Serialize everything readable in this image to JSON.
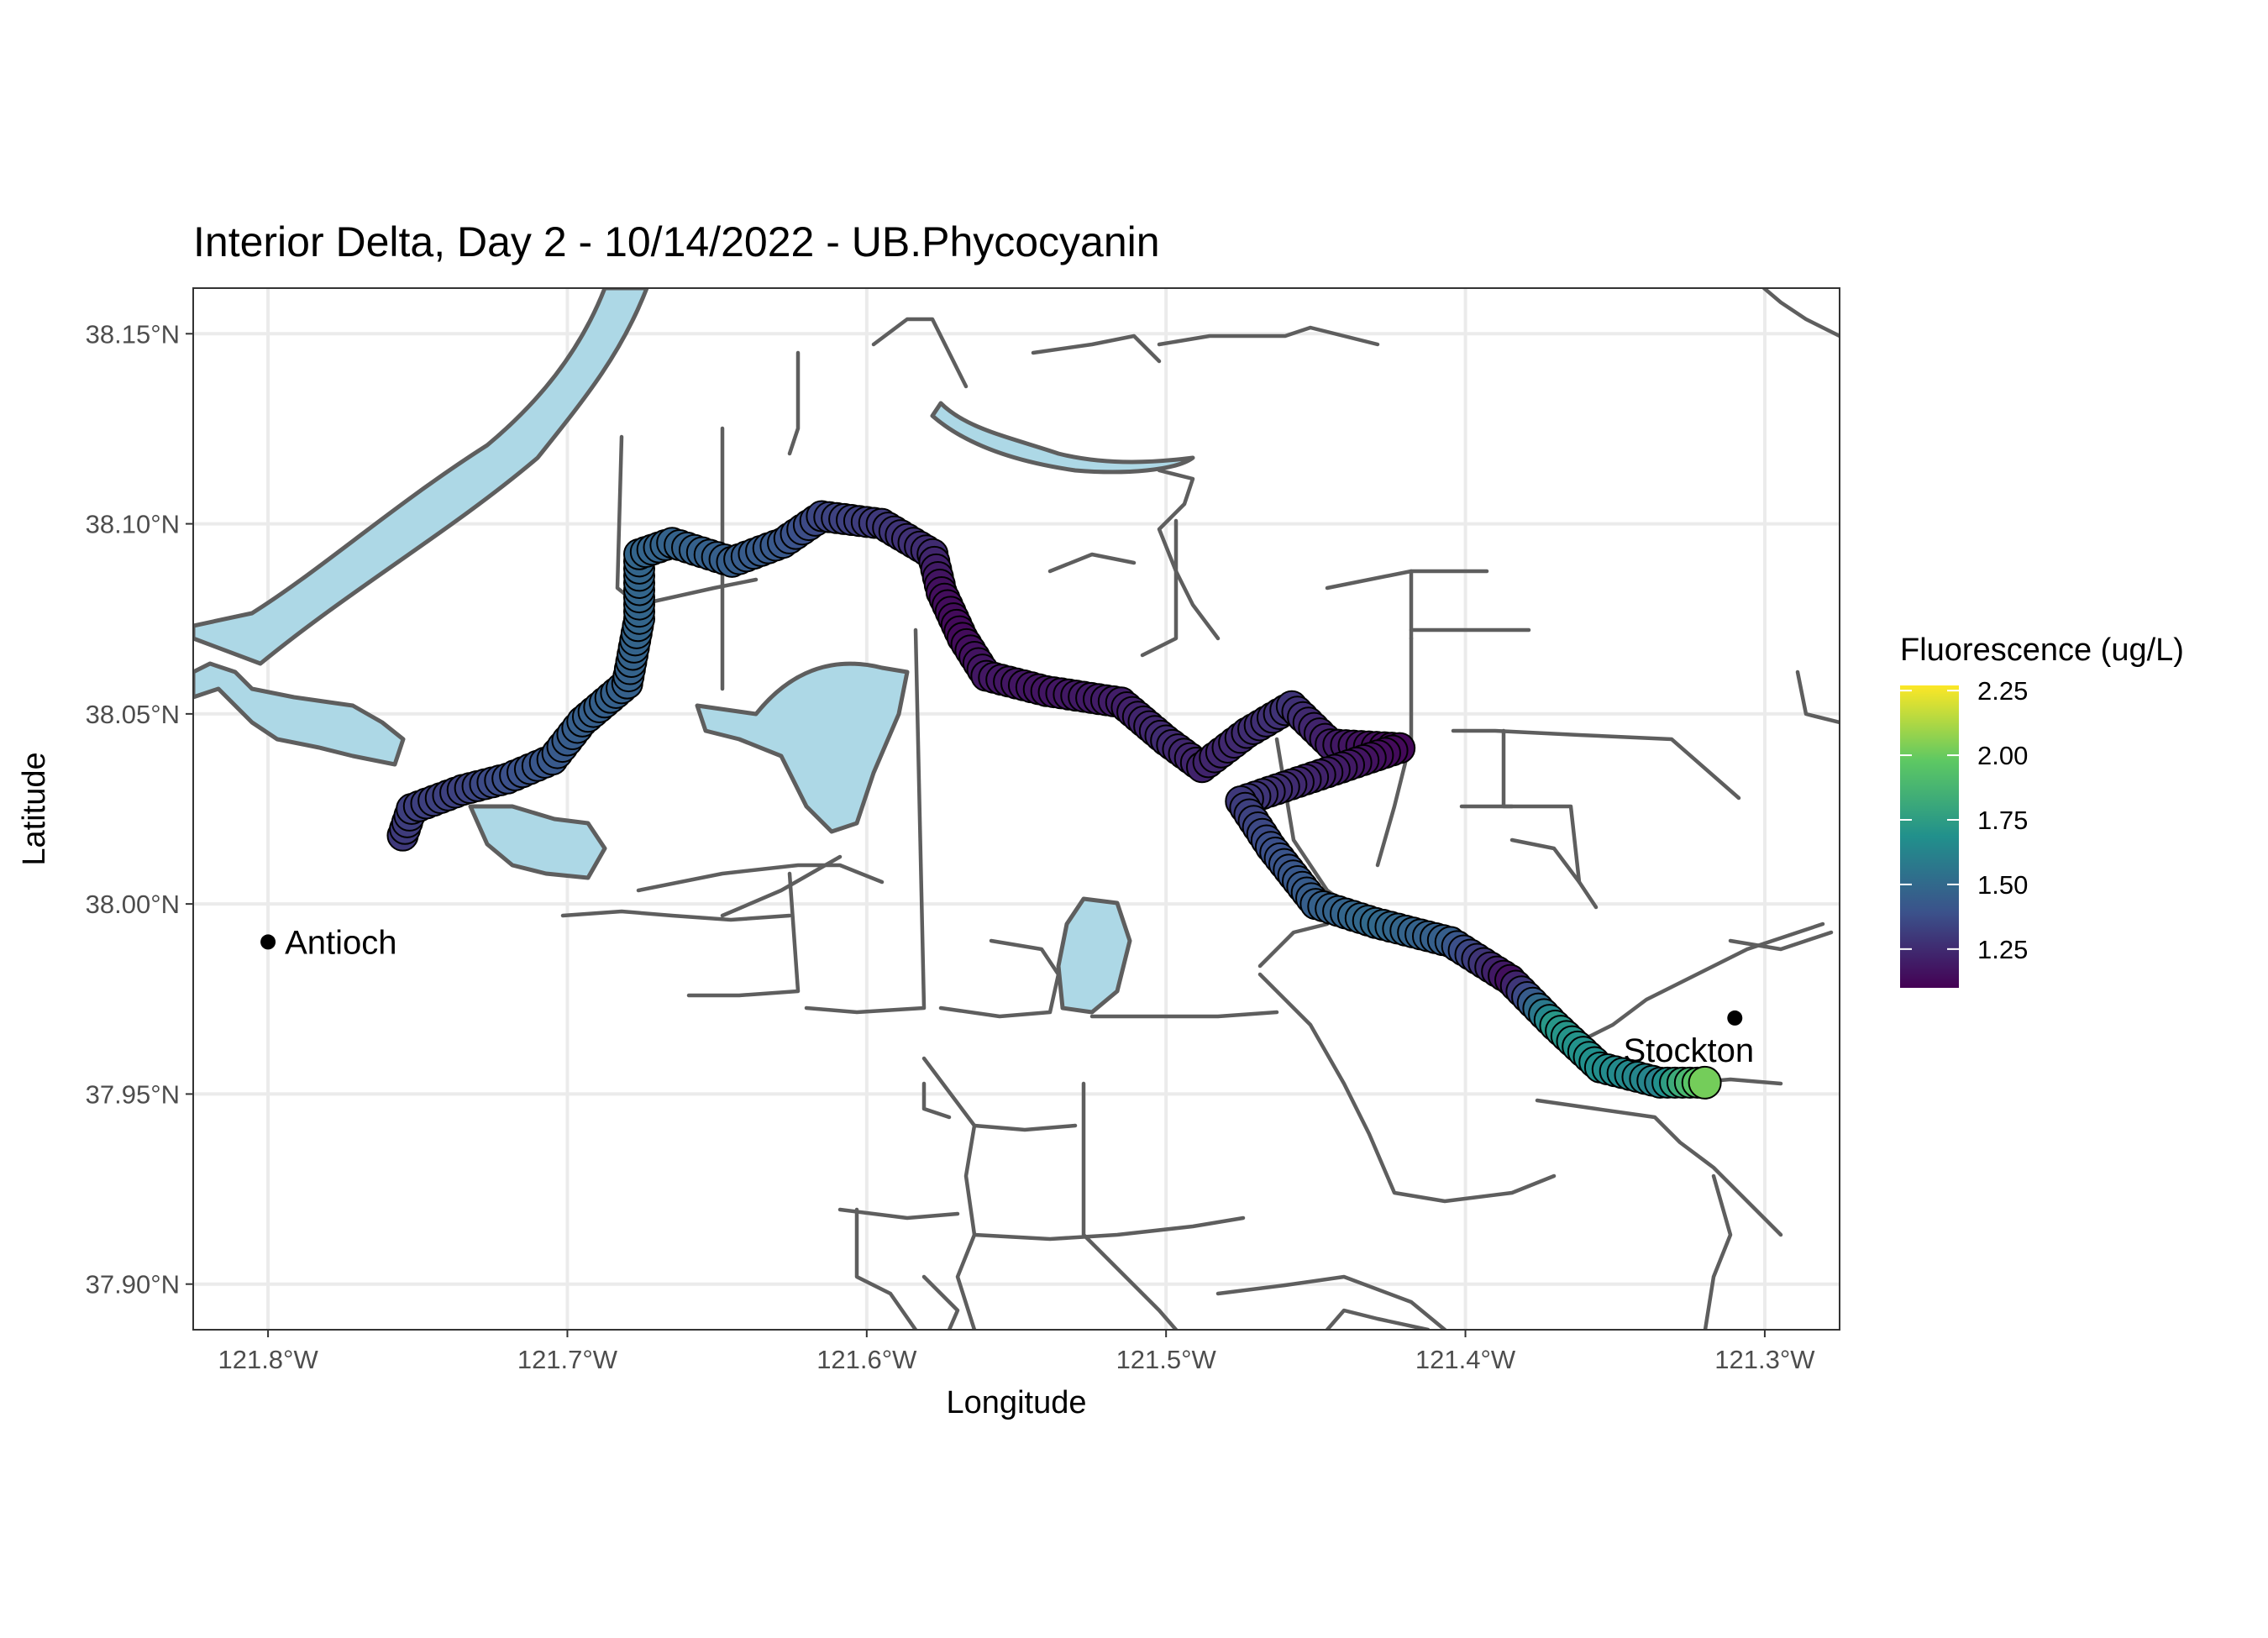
{
  "chart_data": {
    "type": "scatter",
    "title": "Interior Delta, Day 2 - 10/14/2022 - UB.Phycocyanin",
    "xlabel": "Longitude",
    "ylabel": "Latitude",
    "xlim": [
      -121.825,
      -121.275
    ],
    "ylim": [
      37.888,
      38.162
    ],
    "grid": true,
    "x_ticks": [
      {
        "value": -121.8,
        "label": "121.8°W"
      },
      {
        "value": -121.7,
        "label": "121.7°W"
      },
      {
        "value": -121.6,
        "label": "121.6°W"
      },
      {
        "value": -121.5,
        "label": "121.5°W"
      },
      {
        "value": -121.4,
        "label": "121.4°W"
      },
      {
        "value": -121.3,
        "label": "121.3°W"
      }
    ],
    "y_ticks": [
      {
        "value": 37.9,
        "label": "37.90°N"
      },
      {
        "value": 37.95,
        "label": "37.95°N"
      },
      {
        "value": 38.0,
        "label": "38.00°N"
      },
      {
        "value": 38.05,
        "label": "38.05°N"
      },
      {
        "value": 38.1,
        "label": "38.10°N"
      },
      {
        "value": 38.15,
        "label": "38.15°N"
      }
    ],
    "legend": {
      "title": "Fluorescence (ug/L)",
      "placement": "right",
      "range": [
        1.1,
        2.27
      ],
      "ticks": [
        {
          "value": 2.25,
          "label": "2.25"
        },
        {
          "value": 2.0,
          "label": "2.00"
        },
        {
          "value": 1.75,
          "label": "1.75"
        },
        {
          "value": 1.5,
          "label": "1.50"
        },
        {
          "value": 1.25,
          "label": "1.25"
        }
      ],
      "palette": [
        "#440154",
        "#3b528b",
        "#21908c",
        "#5dc863",
        "#fde725"
      ]
    },
    "cities": [
      {
        "name": "Antioch",
        "lon": -121.8,
        "lat": 37.99
      },
      {
        "name": "Stockton",
        "lon": -121.31,
        "lat": 37.97
      }
    ],
    "track": [
      {
        "lon": -121.755,
        "lat": 38.018,
        "v": 1.3
      },
      {
        "lon": -121.752,
        "lat": 38.025,
        "v": 1.32
      },
      {
        "lon": -121.735,
        "lat": 38.03,
        "v": 1.33
      },
      {
        "lon": -121.72,
        "lat": 38.033,
        "v": 1.38
      },
      {
        "lon": -121.705,
        "lat": 38.038,
        "v": 1.42
      },
      {
        "lon": -121.695,
        "lat": 38.048,
        "v": 1.45
      },
      {
        "lon": -121.68,
        "lat": 38.058,
        "v": 1.46
      },
      {
        "lon": -121.676,
        "lat": 38.075,
        "v": 1.48
      },
      {
        "lon": -121.676,
        "lat": 38.092,
        "v": 1.48
      },
      {
        "lon": -121.665,
        "lat": 38.095,
        "v": 1.47
      },
      {
        "lon": -121.645,
        "lat": 38.09,
        "v": 1.45
      },
      {
        "lon": -121.628,
        "lat": 38.095,
        "v": 1.42
      },
      {
        "lon": -121.615,
        "lat": 38.102,
        "v": 1.35
      },
      {
        "lon": -121.595,
        "lat": 38.1,
        "v": 1.3
      },
      {
        "lon": -121.578,
        "lat": 38.092,
        "v": 1.25
      },
      {
        "lon": -121.575,
        "lat": 38.082,
        "v": 1.15
      },
      {
        "lon": -121.568,
        "lat": 38.07,
        "v": 1.13
      },
      {
        "lon": -121.56,
        "lat": 38.06,
        "v": 1.18
      },
      {
        "lon": -121.54,
        "lat": 38.056,
        "v": 1.17
      },
      {
        "lon": -121.515,
        "lat": 38.053,
        "v": 1.2
      },
      {
        "lon": -121.5,
        "lat": 38.043,
        "v": 1.25
      },
      {
        "lon": -121.488,
        "lat": 38.036,
        "v": 1.22
      },
      {
        "lon": -121.473,
        "lat": 38.045,
        "v": 1.25
      },
      {
        "lon": -121.458,
        "lat": 38.052,
        "v": 1.28
      },
      {
        "lon": -121.445,
        "lat": 38.042,
        "v": 1.2
      },
      {
        "lon": -121.422,
        "lat": 38.041,
        "v": 1.12
      },
      {
        "lon": -121.475,
        "lat": 38.027,
        "v": 1.3
      },
      {
        "lon": -121.465,
        "lat": 38.015,
        "v": 1.38
      },
      {
        "lon": -121.45,
        "lat": 38.0,
        "v": 1.45
      },
      {
        "lon": -121.43,
        "lat": 37.995,
        "v": 1.5
      },
      {
        "lon": -121.405,
        "lat": 37.99,
        "v": 1.45
      },
      {
        "lon": -121.385,
        "lat": 37.98,
        "v": 1.15
      },
      {
        "lon": -121.37,
        "lat": 37.968,
        "v": 1.72
      },
      {
        "lon": -121.355,
        "lat": 37.957,
        "v": 1.68
      },
      {
        "lon": -121.335,
        "lat": 37.953,
        "v": 1.62
      },
      {
        "lon": -121.32,
        "lat": 37.953,
        "v": 2.02
      }
    ]
  }
}
